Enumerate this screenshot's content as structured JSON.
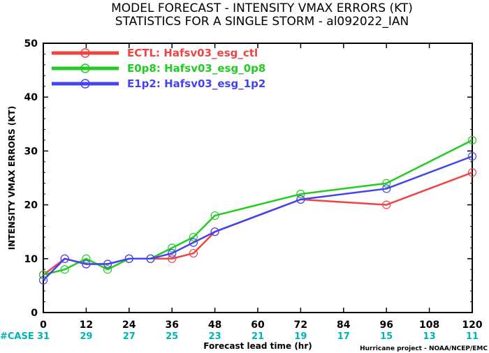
{
  "chart_data": {
    "type": "line",
    "title": "MODEL FORECAST - INTENSITY VMAX ERRORS (KT)",
    "subtitle": "STATISTICS FOR A SINGLE STORM - al092022_IAN",
    "xlabel": "Forecast lead time (hr)",
    "ylabel": "INTENSITY VMAX ERRORS (KT)",
    "xlim": [
      0,
      120
    ],
    "ylim": [
      0,
      50
    ],
    "x_ticks": [
      "0",
      "12",
      "24",
      "36",
      "48",
      "60",
      "72",
      "84",
      "96",
      "108",
      "120"
    ],
    "y_ticks": [
      "0",
      "10",
      "20",
      "30",
      "40",
      "50"
    ],
    "legend_position": "top-left",
    "series": [
      {
        "name": "ECTL: Hafsv03_esg_ctl",
        "color": "#ee4444",
        "x": [
          0,
          6,
          12,
          18,
          24,
          30,
          36,
          42,
          48,
          72,
          96,
          120
        ],
        "y": [
          7,
          10,
          9,
          9,
          10,
          10,
          10,
          11,
          15,
          21,
          20,
          26
        ]
      },
      {
        "name": "E0p8: Hafsv03_esg_0p8",
        "color": "#22cc22",
        "x": [
          0,
          6,
          12,
          18,
          24,
          30,
          36,
          42,
          48,
          72,
          96,
          120
        ],
        "y": [
          7,
          8,
          10,
          8,
          10,
          10,
          12,
          14,
          18,
          22,
          24,
          32
        ]
      },
      {
        "name": "E1p2: Hafsv03_esg_1p2",
        "color": "#4444ee",
        "x": [
          0,
          6,
          12,
          18,
          24,
          30,
          36,
          42,
          48,
          72,
          96,
          120
        ],
        "y": [
          6,
          10,
          9,
          9,
          10,
          10,
          11,
          13,
          15,
          21,
          23,
          29
        ]
      }
    ],
    "case_label": "#CASE",
    "case_counts": [
      {
        "x": 0,
        "n": "31"
      },
      {
        "x": 12,
        "n": "29"
      },
      {
        "x": 24,
        "n": "27"
      },
      {
        "x": 36,
        "n": "25"
      },
      {
        "x": 48,
        "n": "23"
      },
      {
        "x": 60,
        "n": "21"
      },
      {
        "x": 72,
        "n": "19"
      },
      {
        "x": 84,
        "n": "17"
      },
      {
        "x": 96,
        "n": "15"
      },
      {
        "x": 108,
        "n": "13"
      },
      {
        "x": 120,
        "n": "11"
      }
    ],
    "credit": "Hurricane project - NOAA/NCEP/EMC",
    "grid": false
  }
}
